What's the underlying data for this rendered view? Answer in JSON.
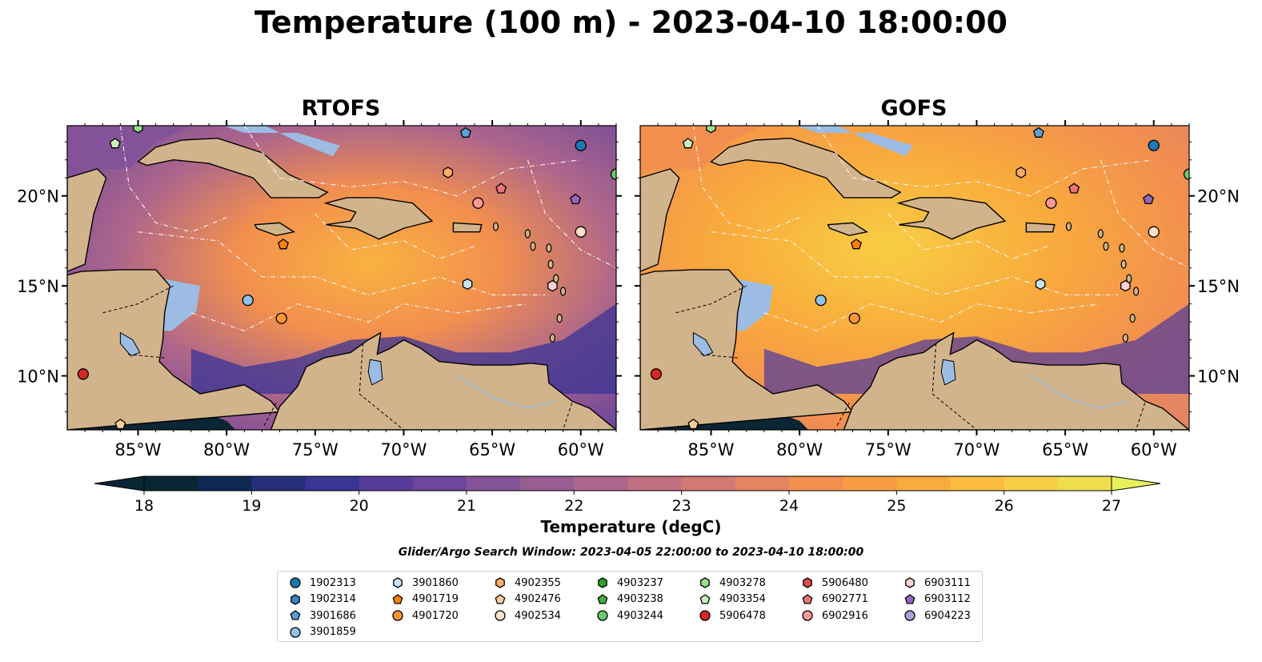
{
  "title": "Temperature (100 m) - 2023-04-10 18:00:00",
  "panels": [
    {
      "title": "RTOFS",
      "id": "rtofs"
    },
    {
      "title": "GOFS",
      "id": "gofs"
    }
  ],
  "axes": {
    "x_ticks": [
      "85°W",
      "80°W",
      "75°W",
      "70°W",
      "65°W",
      "60°W"
    ],
    "y_ticks": [
      "20°N",
      "15°N",
      "10°N"
    ]
  },
  "colorbar": {
    "label": "Temperature (degC)",
    "ticks": [
      "18",
      "19",
      "20",
      "21",
      "22",
      "23",
      "24",
      "25",
      "26",
      "27"
    ],
    "colors": [
      "#0a2533",
      "#0e2a55",
      "#262f7a",
      "#3a3494",
      "#573d99",
      "#6d479b",
      "#845298",
      "#985d93",
      "#ad668b",
      "#c07080",
      "#d27a72",
      "#e48463",
      "#f28f4f",
      "#f79c42",
      "#f9ab3d",
      "#f9bc3f",
      "#f7ce43",
      "#eedf4b",
      "#e7f25a"
    ]
  },
  "search_window": "Glider/Argo Search Window: 2023-04-05 22:00:00 to 2023-04-10 18:00:00",
  "legend": [
    {
      "id": "1902313",
      "shape": "circle",
      "color": "#1f77b4"
    },
    {
      "id": "1902314",
      "shape": "hexagon",
      "color": "#3a85c4"
    },
    {
      "id": "3901686",
      "shape": "pentagon",
      "color": "#5b9fd6"
    },
    {
      "id": "3901859",
      "shape": "circle",
      "color": "#8fc3ec"
    },
    {
      "id": "3901860",
      "shape": "hexagon",
      "color": "#c6e3f6"
    },
    {
      "id": "4901719",
      "shape": "pentagon",
      "color": "#ff7f0e"
    },
    {
      "id": "4901720",
      "shape": "circle",
      "color": "#ff9533"
    },
    {
      "id": "4902355",
      "shape": "hexagon",
      "color": "#ffad66"
    },
    {
      "id": "4902476",
      "shape": "pentagon",
      "color": "#ffcc99"
    },
    {
      "id": "4902534",
      "shape": "circle",
      "color": "#ffe2c6"
    },
    {
      "id": "4903237",
      "shape": "hexagon",
      "color": "#2ca02c"
    },
    {
      "id": "4903238",
      "shape": "pentagon",
      "color": "#40b040"
    },
    {
      "id": "4903244",
      "shape": "circle",
      "color": "#6cc96c"
    },
    {
      "id": "4903278",
      "shape": "hexagon",
      "color": "#98df8a"
    },
    {
      "id": "4903354",
      "shape": "pentagon",
      "color": "#c9f0bc"
    },
    {
      "id": "5906478",
      "shape": "circle",
      "color": "#d62728"
    },
    {
      "id": "5906480",
      "shape": "hexagon",
      "color": "#dd4b4c"
    },
    {
      "id": "6902771",
      "shape": "pentagon",
      "color": "#ec7474"
    },
    {
      "id": "6902916",
      "shape": "circle",
      "color": "#ff9896"
    },
    {
      "id": "6903111",
      "shape": "hexagon",
      "color": "#ffd0cf"
    },
    {
      "id": "6903112",
      "shape": "pentagon",
      "color": "#9467bd"
    },
    {
      "id": "6904223",
      "shape": "circle",
      "color": "#b19cd9"
    }
  ],
  "floats_on_map": [
    {
      "id": "1902313",
      "lon": -60.0,
      "lat": 22.8
    },
    {
      "id": "4903244",
      "lon": -58.0,
      "lat": 21.2
    },
    {
      "id": "4902355",
      "lon": -67.5,
      "lat": 21.3
    },
    {
      "id": "6903112",
      "lon": -60.3,
      "lat": 19.8
    },
    {
      "id": "6902771",
      "lon": -64.5,
      "lat": 20.4
    },
    {
      "id": "6902916",
      "lon": -65.8,
      "lat": 19.6
    },
    {
      "id": "4902534",
      "lon": -60.0,
      "lat": 18.0
    },
    {
      "id": "4901719",
      "lon": -76.8,
      "lat": 17.3
    },
    {
      "id": "3901860",
      "lon": -66.4,
      "lat": 15.1
    },
    {
      "id": "6903111",
      "lon": -61.6,
      "lat": 15.0
    },
    {
      "id": "3901859",
      "lon": -78.8,
      "lat": 14.2
    },
    {
      "id": "4901720",
      "lon": -76.9,
      "lat": 13.2
    },
    {
      "id": "5906478",
      "lon": -88.1,
      "lat": 10.1
    },
    {
      "id": "4903354",
      "lon": -86.3,
      "lat": 22.9
    },
    {
      "id": "3901686",
      "lon": -66.5,
      "lat": 23.5
    },
    {
      "id": "4903278",
      "lon": -85.0,
      "lat": 23.8
    },
    {
      "id": "4902476",
      "lon": -86.0,
      "lat": 7.3
    }
  ]
}
